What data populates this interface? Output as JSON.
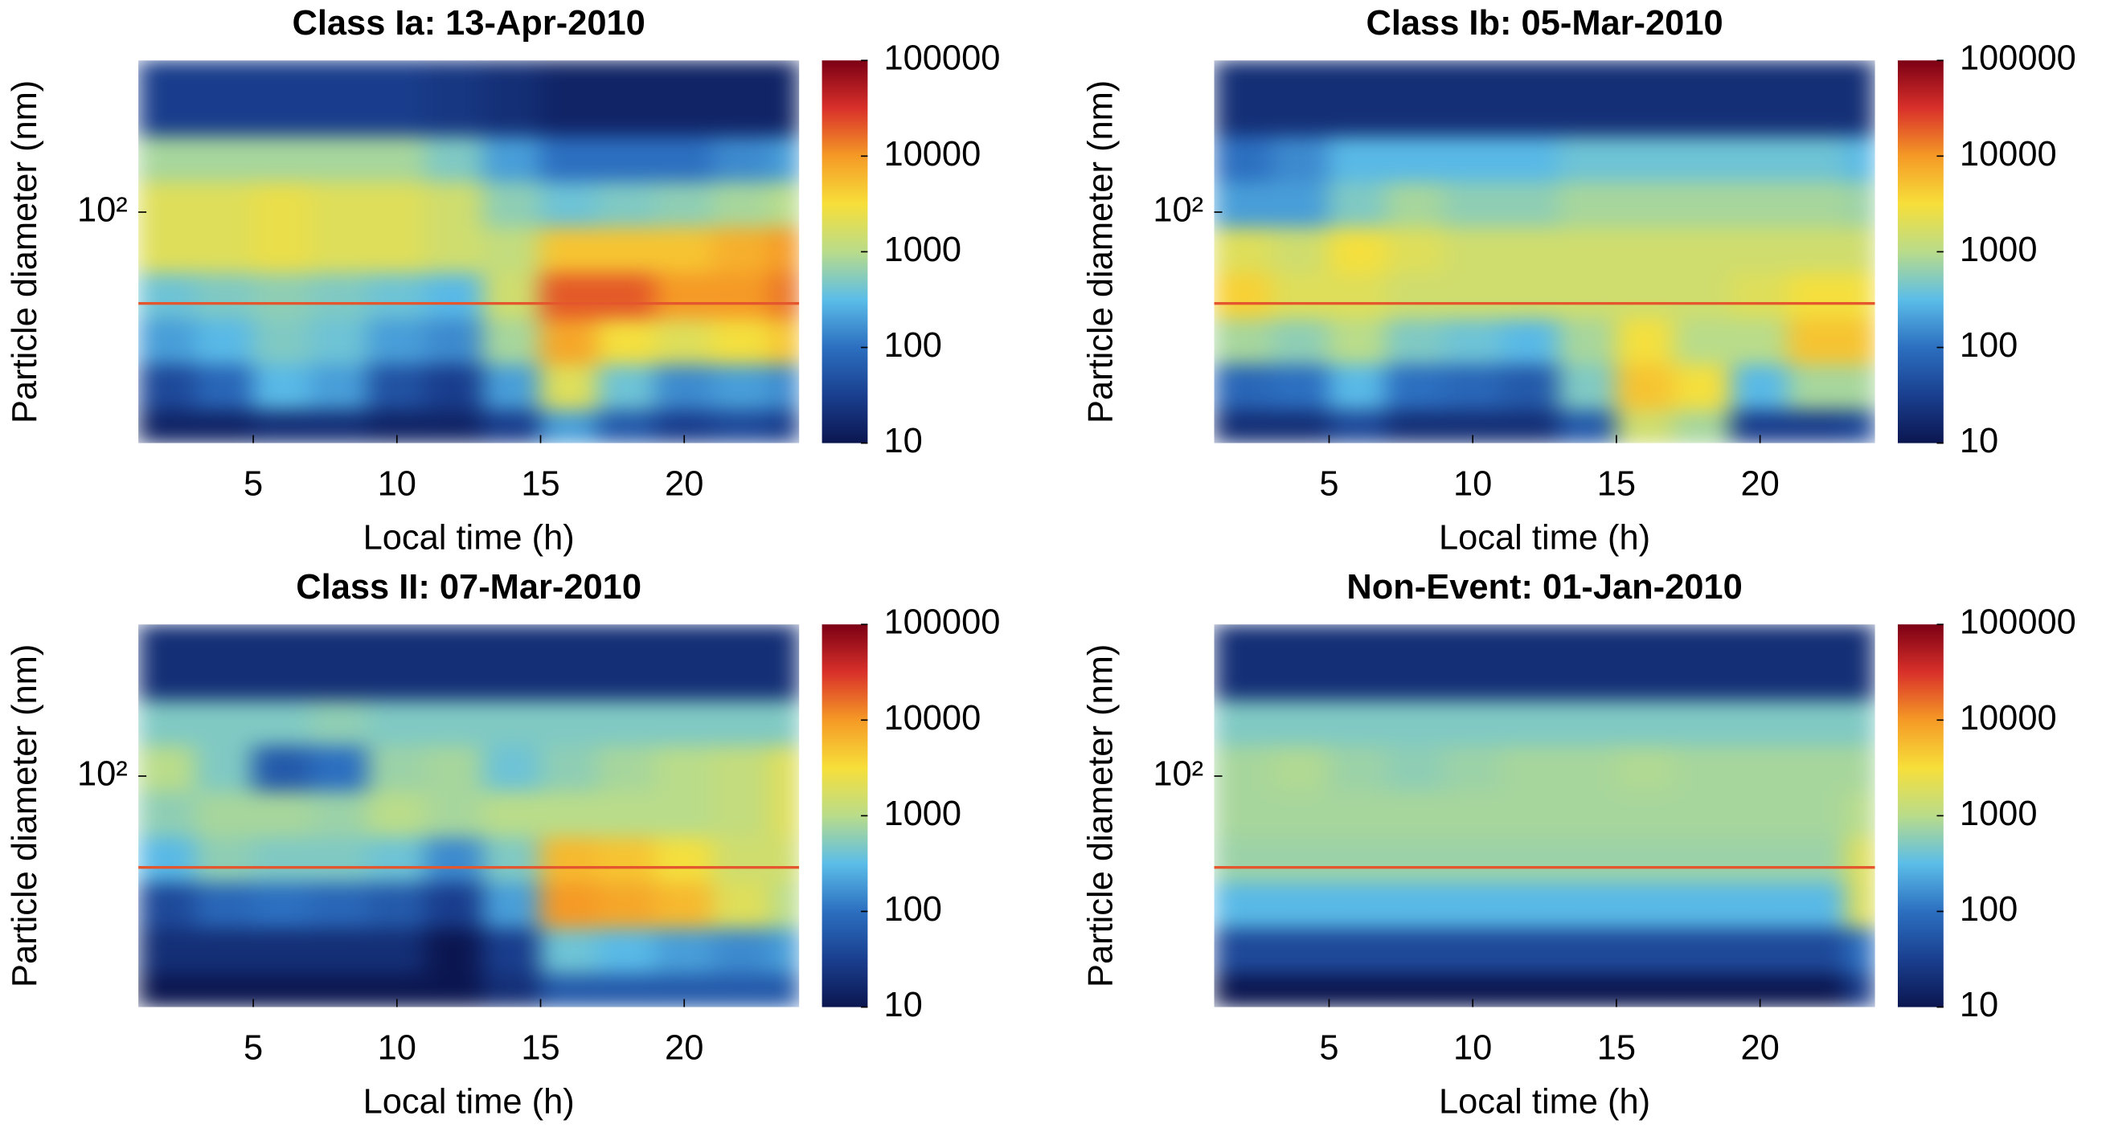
{
  "chart_data": [
    {
      "type": "heatmap",
      "title": "Class Ia: 13-Apr-2010",
      "xlabel": "Local time (h)",
      "ylabel": "Particle diameter (nm)",
      "xlim": [
        1,
        24
      ],
      "xticks": [
        5,
        10,
        15,
        20
      ],
      "ylim": [
        3,
        1000
      ],
      "yscale": "log",
      "yticks": [
        {
          "value": 100,
          "label": "10²"
        }
      ],
      "xbins": [
        1,
        3,
        5,
        7,
        9,
        11,
        13,
        15,
        17,
        19,
        21,
        23,
        24
      ],
      "ybins": [
        3,
        5,
        10,
        20,
        40,
        80,
        160,
        320,
        1000
      ],
      "z": [
        [
          15,
          15,
          20,
          20,
          15,
          15,
          30,
          200,
          60,
          30,
          40,
          30
        ],
        [
          40,
          80,
          300,
          200,
          50,
          30,
          200,
          2000,
          400,
          150,
          200,
          150
        ],
        [
          200,
          300,
          500,
          400,
          200,
          150,
          800,
          8000,
          3000,
          2000,
          3000,
          5000
        ],
        [
          400,
          500,
          600,
          500,
          400,
          300,
          1500,
          20000,
          20000,
          10000,
          10000,
          15000
        ],
        [
          2000,
          2000,
          2500,
          2000,
          2000,
          1500,
          1200,
          5000,
          5000,
          5000,
          7000,
          10000
        ],
        [
          2000,
          2000,
          2500,
          2000,
          2000,
          1500,
          600,
          400,
          500,
          600,
          800,
          1000
        ],
        [
          800,
          800,
          800,
          800,
          800,
          500,
          200,
          100,
          100,
          100,
          150,
          200
        ],
        [
          30,
          30,
          30,
          30,
          30,
          25,
          20,
          15,
          15,
          15,
          15,
          15
        ]
      ],
      "clim": [
        10,
        100000
      ],
      "cscale": "log",
      "cticks": [
        10,
        100,
        1000,
        10000,
        100000
      ],
      "colormap": [
        "#0b1650",
        "#1a3f8f",
        "#2c6fc0",
        "#5bbde8",
        "#b9dc8a",
        "#f7df3a",
        "#f59a26",
        "#d9302a",
        "#7b0014"
      ],
      "hline": 25,
      "hline_color": "#e4572e"
    },
    {
      "type": "heatmap",
      "title": "Class Ib: 05-Mar-2010",
      "xlabel": "Local time (h)",
      "ylabel": "Particle diameter (nm)",
      "xlim": [
        1,
        24
      ],
      "xticks": [
        5,
        10,
        15,
        20
      ],
      "ylim": [
        3,
        1000
      ],
      "yscale": "log",
      "yticks": [
        {
          "value": 100,
          "label": "10²"
        }
      ],
      "xbins": [
        1,
        3,
        5,
        7,
        9,
        11,
        13,
        15,
        17,
        19,
        21,
        23,
        24
      ],
      "ybins": [
        3,
        5,
        10,
        20,
        40,
        80,
        160,
        320,
        1000
      ],
      "z": [
        [
          20,
          20,
          40,
          20,
          20,
          20,
          60,
          1500,
          800,
          30,
          30,
          40
        ],
        [
          80,
          100,
          300,
          100,
          80,
          60,
          500,
          5000,
          3000,
          300,
          800,
          800
        ],
        [
          800,
          600,
          1000,
          500,
          400,
          300,
          800,
          3000,
          1000,
          1000,
          5000,
          5000
        ],
        [
          4000,
          2000,
          2000,
          1500,
          1500,
          1500,
          1500,
          1500,
          1500,
          2000,
          3000,
          3000
        ],
        [
          2000,
          1500,
          3000,
          2000,
          1500,
          1500,
          1500,
          1500,
          1500,
          1500,
          1500,
          1500
        ],
        [
          200,
          200,
          500,
          800,
          600,
          600,
          800,
          800,
          800,
          800,
          800,
          700
        ],
        [
          100,
          150,
          300,
          300,
          300,
          300,
          400,
          400,
          400,
          400,
          400,
          300
        ],
        [
          20,
          20,
          20,
          20,
          20,
          20,
          20,
          20,
          20,
          20,
          20,
          20
        ]
      ],
      "clim": [
        10,
        100000
      ],
      "cscale": "log",
      "cticks": [
        10,
        100,
        1000,
        10000,
        100000
      ],
      "colormap": [
        "#0b1650",
        "#1a3f8f",
        "#2c6fc0",
        "#5bbde8",
        "#b9dc8a",
        "#f7df3a",
        "#f59a26",
        "#d9302a",
        "#7b0014"
      ],
      "hline": 25,
      "hline_color": "#e4572e"
    },
    {
      "type": "heatmap",
      "title": "Class II: 07-Mar-2010",
      "xlabel": "Local time (h)",
      "ylabel": "Particle diameter (nm)",
      "xlim": [
        1,
        24
      ],
      "xticks": [
        5,
        10,
        15,
        20
      ],
      "ylim": [
        3,
        1000
      ],
      "yscale": "log",
      "yticks": [
        {
          "value": 100,
          "label": "10²"
        }
      ],
      "xbins": [
        1,
        3,
        5,
        7,
        9,
        11,
        13,
        15,
        17,
        19,
        21,
        23,
        24
      ],
      "ybins": [
        3,
        5,
        10,
        20,
        40,
        80,
        160,
        320,
        1000
      ],
      "z": [
        [
          10,
          10,
          10,
          10,
          10,
          10,
          20,
          60,
          60,
          60,
          60,
          60
        ],
        [
          20,
          20,
          20,
          20,
          20,
          10,
          30,
          400,
          300,
          200,
          150,
          200
        ],
        [
          40,
          80,
          100,
          80,
          60,
          30,
          200,
          10000,
          8000,
          6000,
          2000,
          1000
        ],
        [
          300,
          600,
          500,
          500,
          400,
          150,
          500,
          6000,
          5000,
          3000,
          1500,
          1500
        ],
        [
          600,
          800,
          800,
          700,
          1000,
          800,
          1000,
          1000,
          1000,
          1000,
          1200,
          2000
        ],
        [
          1000,
          500,
          60,
          100,
          700,
          800,
          400,
          600,
          800,
          1000,
          1200,
          2000
        ],
        [
          500,
          500,
          500,
          600,
          500,
          500,
          500,
          500,
          500,
          500,
          500,
          500
        ],
        [
          20,
          20,
          20,
          20,
          20,
          20,
          20,
          20,
          20,
          20,
          20,
          20
        ]
      ],
      "clim": [
        10,
        100000
      ],
      "cscale": "log",
      "cticks": [
        10,
        100,
        1000,
        10000,
        100000
      ],
      "colormap": [
        "#0b1650",
        "#1a3f8f",
        "#2c6fc0",
        "#5bbde8",
        "#b9dc8a",
        "#f7df3a",
        "#f59a26",
        "#d9302a",
        "#7b0014"
      ],
      "hline": 25,
      "hline_color": "#e4572e"
    },
    {
      "type": "heatmap",
      "title": "Non-Event: 01-Jan-2010",
      "xlabel": "Local time (h)",
      "ylabel": "Particle diameter (nm)",
      "xlim": [
        1,
        24
      ],
      "xticks": [
        5,
        10,
        15,
        20
      ],
      "ylim": [
        3,
        1000
      ],
      "yscale": "log",
      "yticks": [
        {
          "value": 100,
          "label": "10²"
        }
      ],
      "xbins": [
        1,
        3,
        5,
        7,
        9,
        11,
        13,
        15,
        17,
        19,
        21,
        23,
        24
      ],
      "ybins": [
        3,
        5,
        10,
        20,
        40,
        80,
        160,
        320,
        1000
      ],
      "z": [
        [
          10,
          10,
          10,
          10,
          10,
          10,
          10,
          10,
          10,
          10,
          10,
          30
        ],
        [
          40,
          40,
          40,
          40,
          40,
          40,
          40,
          40,
          40,
          40,
          40,
          100
        ],
        [
          300,
          300,
          300,
          300,
          300,
          300,
          300,
          300,
          300,
          300,
          300,
          2000
        ],
        [
          700,
          700,
          700,
          700,
          700,
          700,
          700,
          700,
          700,
          700,
          700,
          2000
        ],
        [
          800,
          800,
          800,
          800,
          800,
          800,
          800,
          800,
          800,
          800,
          800,
          1000
        ],
        [
          800,
          900,
          700,
          600,
          700,
          800,
          800,
          900,
          800,
          800,
          800,
          800
        ],
        [
          500,
          500,
          500,
          500,
          500,
          500,
          500,
          500,
          500,
          500,
          500,
          500
        ],
        [
          20,
          20,
          20,
          20,
          20,
          20,
          20,
          20,
          20,
          20,
          20,
          20
        ]
      ],
      "clim": [
        10,
        100000
      ],
      "cscale": "log",
      "cticks": [
        10,
        100,
        1000,
        10000,
        100000
      ],
      "colormap": [
        "#0b1650",
        "#1a3f8f",
        "#2c6fc0",
        "#5bbde8",
        "#b9dc8a",
        "#f7df3a",
        "#f59a26",
        "#d9302a",
        "#7b0014"
      ],
      "hline": 25,
      "hline_color": "#e4572e"
    }
  ]
}
